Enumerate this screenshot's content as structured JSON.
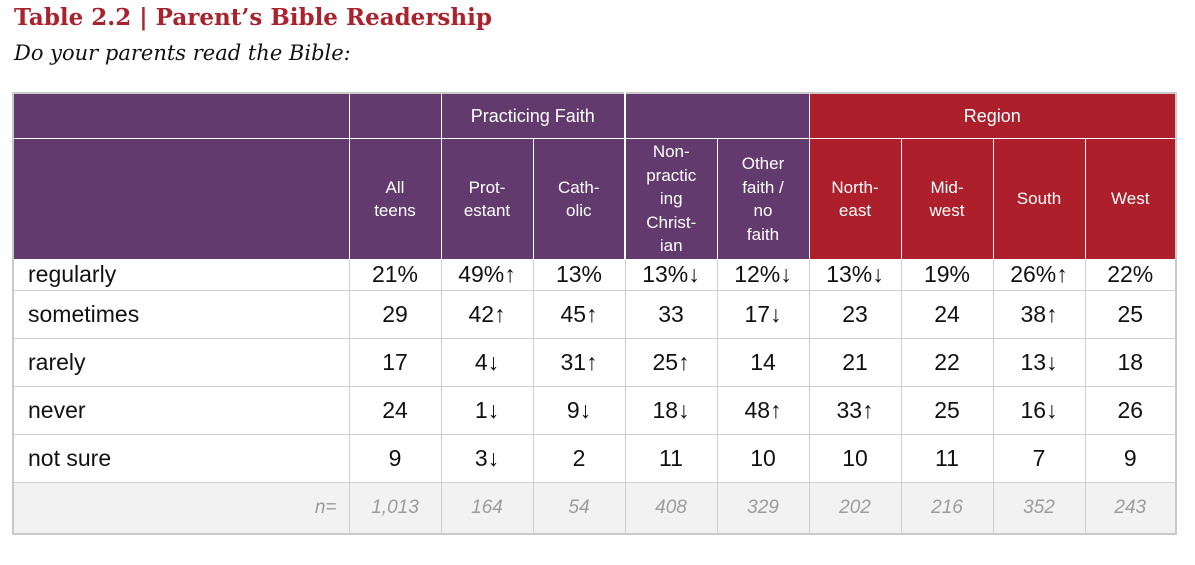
{
  "title": "Table 2.2 | Parent’s Bible Readership",
  "subtitle": "Do your parents read the Bible:",
  "groups": {
    "practicing": "Practicing Faith",
    "region": "Region"
  },
  "columns": [
    {
      "lines": [
        "All",
        "teens"
      ]
    },
    {
      "lines": [
        "Prot-",
        "estant"
      ]
    },
    {
      "lines": [
        "Cath-",
        "olic"
      ]
    },
    {
      "lines": [
        "Non-",
        "practic",
        "ing",
        "Christ-",
        "ian"
      ]
    },
    {
      "lines": [
        "Other",
        "faith /",
        "no",
        "faith"
      ]
    },
    {
      "lines": [
        "North-",
        "east"
      ]
    },
    {
      "lines": [
        "Mid-",
        "west"
      ]
    },
    {
      "lines": [
        "South"
      ]
    },
    {
      "lines": [
        "West"
      ]
    }
  ],
  "rows": [
    {
      "label": "regularly",
      "cells": [
        "21%",
        "49%↑",
        "13%",
        "13%↓",
        "12%↓",
        "13%↓",
        "19%",
        "26%↑",
        "22%"
      ]
    },
    {
      "label": "sometimes",
      "cells": [
        "29",
        "42↑",
        "45↑",
        "33",
        "17↓",
        "23",
        "24",
        "38↑",
        "25"
      ]
    },
    {
      "label": "rarely",
      "cells": [
        "17",
        "4↓",
        "31↑",
        "25↑",
        "14",
        "21",
        "22",
        "13↓",
        "18"
      ]
    },
    {
      "label": "never",
      "cells": [
        "24",
        "1↓",
        "9↓",
        "18↓",
        "48↑",
        "33↑",
        "25",
        "16↓",
        "26"
      ]
    },
    {
      "label": "not sure",
      "cells": [
        "9",
        "3↓",
        "2",
        "11",
        "10",
        "10",
        "11",
        "7",
        "9"
      ]
    }
  ],
  "n_row": {
    "label": "n=",
    "cells": [
      "1,013",
      "164",
      "54",
      "408",
      "329",
      "202",
      "216",
      "352",
      "243"
    ]
  },
  "colors": {
    "title": "#a8232d",
    "header_purple": "#633a6e",
    "header_red": "#ad1f2b"
  }
}
